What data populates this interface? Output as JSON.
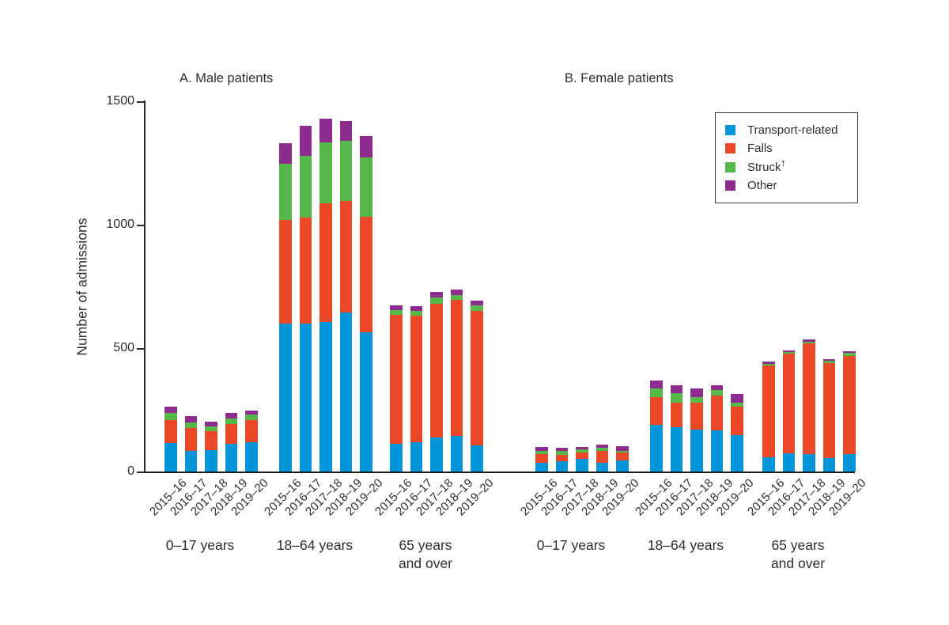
{
  "figure": {
    "background": "#ffffff",
    "text_color": "#2d2d2d",
    "axis_color": "#2a2a2a"
  },
  "chart_data": {
    "type": "bar",
    "stacked": true,
    "grid": false,
    "ylabel": "Number of admissions",
    "ylim": [
      0,
      1500
    ],
    "yticks": [
      {
        "value": 0,
        "label": "0"
      },
      {
        "value": 500,
        "label": "500"
      },
      {
        "value": 1000,
        "label": "1000"
      },
      {
        "value": 1500,
        "label": "1500"
      }
    ],
    "categories": [
      "2015–16",
      "2016–17",
      "2017–18",
      "2018–19",
      "2019–20"
    ],
    "series": [
      {
        "key": "transport",
        "name": "Transport-related",
        "color": "#0295d9"
      },
      {
        "key": "falls",
        "name": "Falls",
        "color": "#ea4826"
      },
      {
        "key": "struck",
        "name": "Struck†",
        "color": "#56b848"
      },
      {
        "key": "other",
        "name": "Other",
        "color": "#8e2b8f"
      }
    ],
    "panels": [
      {
        "id": "male",
        "title": "A. Male patients",
        "groups": [
          {
            "label": "0–17 years",
            "values": [
              [
                115,
                83,
                88,
                112,
                120
              ],
              [
                95,
                93,
                77,
                80,
                89
              ],
              [
                27,
                22,
                19,
                24,
                21
              ],
              [
                25,
                25,
                18,
                22,
                18
              ]
            ]
          },
          {
            "label": "18–64 years",
            "values": [
              [
                600,
                600,
                605,
                645,
                565
              ],
              [
                420,
                430,
                480,
                450,
                468
              ],
              [
                228,
                250,
                248,
                245,
                240
              ],
              [
                82,
                120,
                95,
                80,
                85
              ]
            ]
          },
          {
            "label": "65 years\nand over",
            "values": [
              [
                112,
                120,
                139,
                144,
                107
              ],
              [
                522,
                512,
                541,
                552,
                543
              ],
              [
                19,
                18,
                25,
                19,
                24
              ],
              [
                19,
                19,
                21,
                23,
                19
              ]
            ]
          }
        ]
      },
      {
        "id": "female",
        "title": "B. Female patients",
        "groups": [
          {
            "label": "0–17 years",
            "values": [
              [
                35,
                43,
                50,
                37,
                45
              ],
              [
                36,
                26,
                28,
                46,
                31
              ],
              [
                12,
                13,
                13,
                13,
                9
              ],
              [
                17,
                13,
                10,
                12,
                17
              ]
            ]
          },
          {
            "label": "18–64 years",
            "values": [
              [
                189,
                180,
                170,
                167,
                146
              ],
              [
                113,
                100,
                109,
                141,
                118
              ],
              [
                34,
                38,
                24,
                23,
                16
              ],
              [
                32,
                32,
                35,
                18,
                34
              ]
            ]
          },
          {
            "label": "65 years\nand over",
            "values": [
              [
                59,
                75,
                70,
                56,
                72
              ],
              [
                372,
                403,
                448,
                383,
                396
              ],
              [
                6,
                6,
                8,
                9,
                12
              ],
              [
                8,
                6,
                8,
                7,
                8
              ]
            ]
          }
        ]
      }
    ],
    "legend": {
      "position": "top-right",
      "items": [
        {
          "label": "Transport-related",
          "color": "#0295d9"
        },
        {
          "label": "Falls",
          "color": "#ea4826"
        },
        {
          "label": "Struck",
          "sup": "†",
          "color": "#56b848"
        },
        {
          "label": "Other",
          "color": "#8e2b8f"
        }
      ]
    }
  }
}
